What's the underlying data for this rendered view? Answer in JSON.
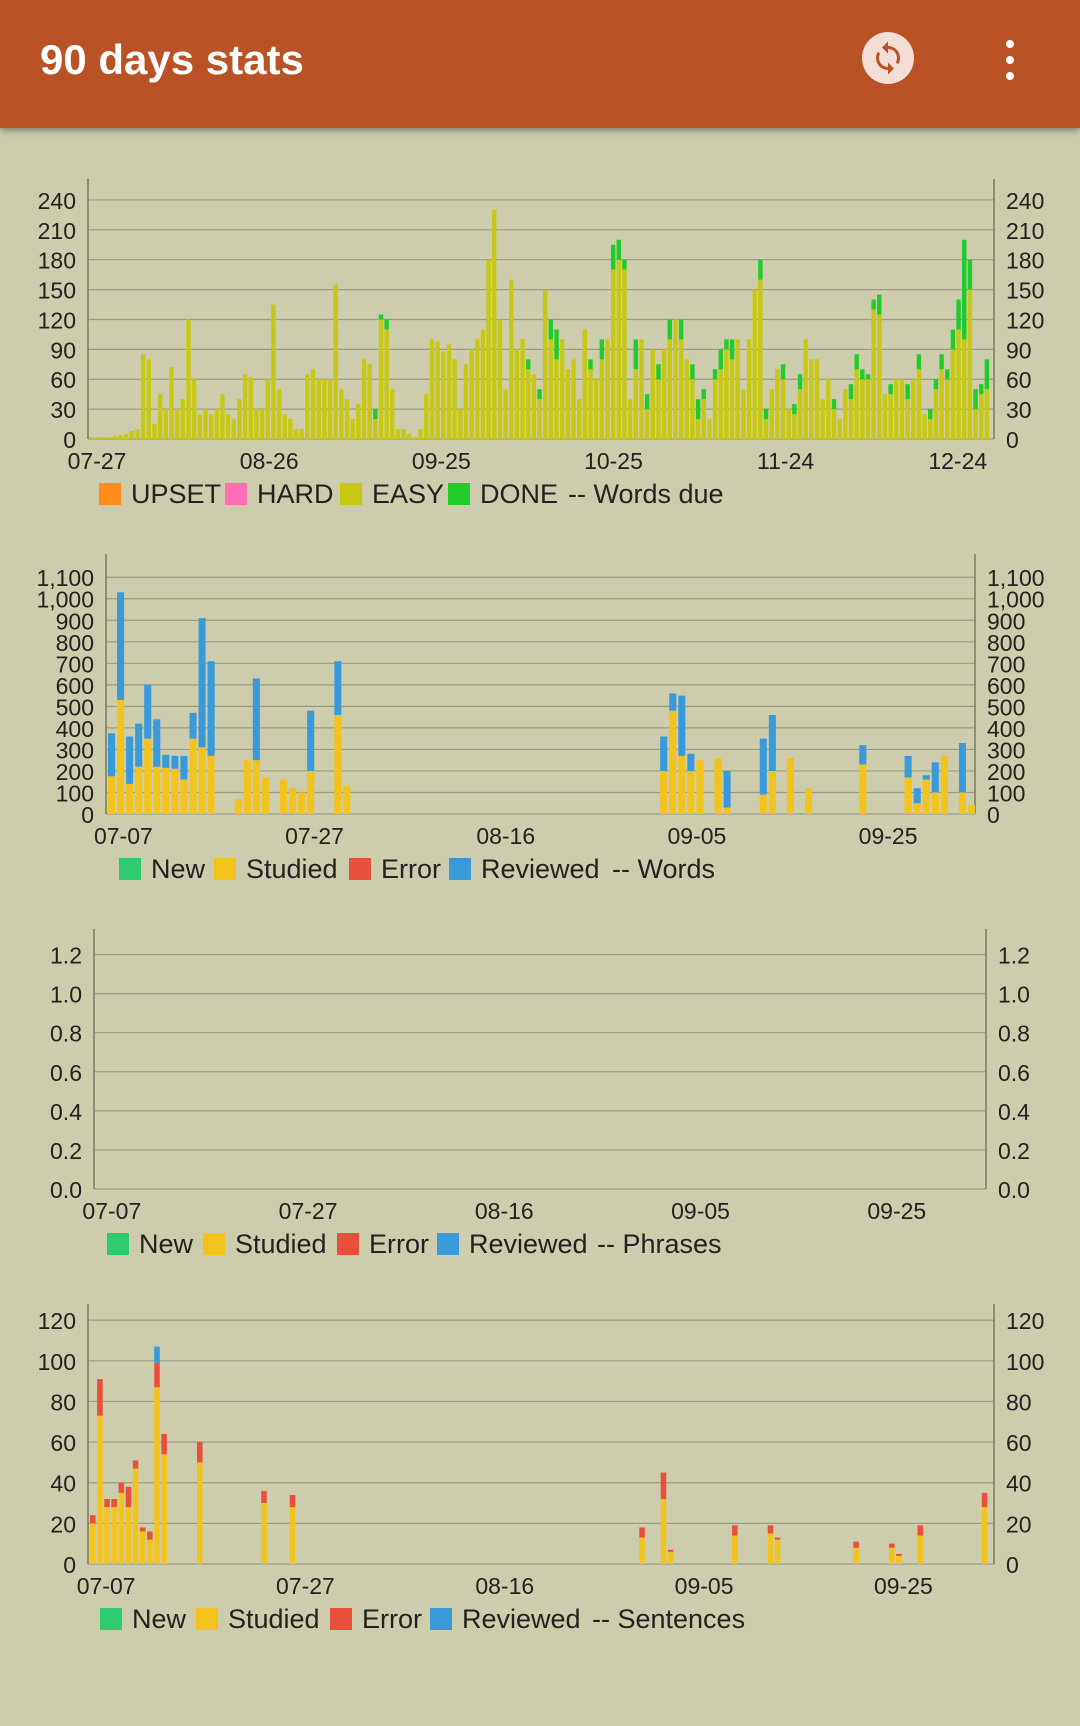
{
  "app_bar": {
    "title": "90 days stats",
    "sync_icon": "sync-icon",
    "menu_icon": "more-vert-icon"
  },
  "colors": {
    "upset": "#ff8c1a",
    "hard": "#ff6eb4",
    "easy": "#c6c814",
    "done": "#1fcc2a",
    "new": "#2ecc71",
    "studied": "#f2c31c",
    "error": "#e8503c",
    "reviewed": "#3a9ad9"
  },
  "chart_data": [
    {
      "id": "words_due",
      "type": "bar",
      "stacked": true,
      "caption": "-- Words due",
      "x_ticks": [
        "07-27",
        "08-26",
        "09-25",
        "10-25",
        "11-24",
        "12-24"
      ],
      "y_ticks": [
        "0",
        "30",
        "60",
        "90",
        "120",
        "150",
        "180",
        "210",
        "240"
      ],
      "ylim": [
        0,
        255
      ],
      "grid": true,
      "legend_position": "bottom",
      "series": [
        {
          "name": "UPSET",
          "color_key": "upset",
          "values": []
        },
        {
          "name": "HARD",
          "color_key": "hard",
          "values": []
        },
        {
          "name": "EASY",
          "color_key": "easy",
          "values": [
            2,
            2,
            2,
            2,
            3,
            4,
            5,
            8,
            10,
            85,
            80,
            15,
            45,
            30,
            72,
            30,
            40,
            120,
            60,
            25,
            30,
            25,
            30,
            45,
            25,
            20,
            40,
            65,
            62,
            30,
            30,
            60,
            135,
            50,
            25,
            20,
            10,
            10,
            65,
            70,
            60,
            60,
            60,
            155,
            50,
            40,
            20,
            35,
            80,
            75,
            20,
            120,
            110,
            50,
            10,
            10,
            5,
            2,
            10,
            45,
            100,
            98,
            88,
            95,
            80,
            30,
            75,
            90,
            100,
            110,
            180,
            230,
            120,
            50,
            160,
            90,
            100,
            70,
            65,
            40,
            150,
            100,
            80,
            100,
            70,
            80,
            40,
            110,
            70,
            60,
            80,
            100,
            170,
            180,
            170,
            40,
            70,
            100,
            30,
            90,
            60,
            90,
            100,
            120,
            100,
            80,
            60,
            20,
            40,
            20,
            60,
            70,
            90,
            80,
            100,
            50,
            100,
            150,
            160,
            20,
            50,
            70,
            60,
            30,
            25,
            50,
            100,
            80,
            80,
            40,
            60,
            30,
            20,
            50,
            40,
            70,
            60,
            60,
            130,
            125,
            45,
            45,
            60,
            60,
            40,
            60,
            70,
            25,
            20,
            50,
            70,
            60,
            90,
            110,
            100,
            150,
            30,
            45,
            50
          ]
        },
        {
          "name": "DONE",
          "color_key": "done",
          "values": [
            0,
            0,
            0,
            0,
            0,
            0,
            0,
            0,
            0,
            0,
            0,
            0,
            0,
            0,
            0,
            0,
            0,
            0,
            0,
            0,
            0,
            0,
            0,
            0,
            0,
            0,
            0,
            0,
            0,
            0,
            0,
            0,
            0,
            0,
            0,
            0,
            0,
            0,
            0,
            0,
            0,
            0,
            0,
            0,
            0,
            0,
            0,
            0,
            0,
            0,
            10,
            5,
            10,
            0,
            0,
            0,
            0,
            0,
            0,
            0,
            0,
            0,
            0,
            0,
            0,
            0,
            0,
            0,
            0,
            0,
            0,
            0,
            0,
            0,
            0,
            0,
            0,
            10,
            0,
            10,
            0,
            20,
            30,
            0,
            0,
            0,
            0,
            0,
            10,
            0,
            20,
            0,
            25,
            20,
            10,
            0,
            30,
            0,
            15,
            0,
            15,
            0,
            20,
            0,
            20,
            0,
            15,
            20,
            10,
            0,
            10,
            20,
            10,
            20,
            0,
            0,
            0,
            0,
            20,
            10,
            0,
            0,
            15,
            0,
            10,
            15,
            0,
            0,
            0,
            0,
            0,
            10,
            0,
            0,
            15,
            15,
            10,
            5,
            10,
            20,
            0,
            10,
            0,
            0,
            15,
            0,
            15,
            0,
            10,
            10,
            15,
            10,
            20,
            30,
            100,
            30,
            20,
            10,
            30
          ]
        }
      ]
    },
    {
      "id": "words",
      "type": "bar",
      "stacked": true,
      "caption": "-- Words",
      "x_ticks": [
        "07-07",
        "07-27",
        "08-16",
        "09-05",
        "09-25"
      ],
      "y_ticks": [
        "0",
        "100",
        "200",
        "300",
        "400",
        "500",
        "600",
        "700",
        "800",
        "900",
        "1,000",
        "1,100"
      ],
      "ylim": [
        0,
        1180
      ],
      "grid": true,
      "legend_position": "bottom",
      "series": [
        {
          "name": "New",
          "color_key": "new",
          "values": []
        },
        {
          "name": "Studied",
          "color_key": "studied",
          "values": [
            175,
            530,
            140,
            220,
            350,
            220,
            215,
            210,
            160,
            350,
            310,
            270,
            0,
            0,
            70,
            250,
            250,
            170,
            0,
            160,
            120,
            100,
            200,
            0,
            0,
            460,
            130,
            0,
            0,
            0,
            0,
            0,
            0,
            0,
            0,
            0,
            0,
            0,
            0,
            0,
            0,
            0,
            0,
            0,
            0,
            0,
            0,
            0,
            0,
            0,
            0,
            0,
            0,
            0,
            0,
            0,
            0,
            0,
            0,
            0,
            0,
            200,
            480,
            270,
            200,
            250,
            0,
            260,
            30,
            0,
            0,
            0,
            90,
            200,
            0,
            260,
            0,
            120,
            0,
            0,
            0,
            0,
            0,
            230,
            0,
            0,
            0,
            0,
            170,
            50,
            160,
            100,
            270,
            0,
            100,
            40
          ]
        },
        {
          "name": "Error",
          "color_key": "error",
          "values": []
        },
        {
          "name": "Reviewed",
          "color_key": "reviewed",
          "values": [
            200,
            500,
            220,
            200,
            250,
            220,
            60,
            60,
            110,
            120,
            600,
            440,
            0,
            0,
            0,
            0,
            380,
            0,
            0,
            0,
            0,
            0,
            280,
            0,
            0,
            250,
            0,
            0,
            0,
            0,
            0,
            0,
            0,
            0,
            0,
            0,
            0,
            0,
            0,
            0,
            0,
            0,
            0,
            0,
            0,
            0,
            0,
            0,
            0,
            0,
            0,
            0,
            0,
            0,
            0,
            0,
            0,
            0,
            0,
            0,
            0,
            160,
            80,
            280,
            80,
            0,
            0,
            0,
            170,
            0,
            0,
            0,
            260,
            260,
            0,
            0,
            0,
            0,
            0,
            0,
            0,
            0,
            0,
            90,
            0,
            0,
            0,
            0,
            100,
            70,
            20,
            140,
            0,
            0,
            230,
            0
          ]
        }
      ]
    },
    {
      "id": "phrases",
      "type": "bar",
      "stacked": true,
      "caption": "-- Phrases",
      "x_ticks": [
        "07-07",
        "07-27",
        "08-16",
        "09-05",
        "09-25"
      ],
      "y_ticks": [
        "0.0",
        "0.2",
        "0.4",
        "0.6",
        "0.8",
        "1.0",
        "1.2"
      ],
      "ylim": [
        0,
        1.3
      ],
      "grid": true,
      "legend_position": "bottom",
      "series": [
        {
          "name": "New",
          "color_key": "new",
          "values": []
        },
        {
          "name": "Studied",
          "color_key": "studied",
          "values": []
        },
        {
          "name": "Error",
          "color_key": "error",
          "values": []
        },
        {
          "name": "Reviewed",
          "color_key": "reviewed",
          "values": []
        }
      ]
    },
    {
      "id": "sentences",
      "type": "bar",
      "stacked": true,
      "caption": "-- Sentences",
      "x_ticks": [
        "07-07",
        "07-27",
        "08-16",
        "09-05",
        "09-25"
      ],
      "y_ticks": [
        "0",
        "20",
        "40",
        "60",
        "80",
        "100",
        "120"
      ],
      "ylim": [
        0,
        125
      ],
      "grid": true,
      "legend_position": "bottom",
      "series": [
        {
          "name": "New",
          "color_key": "new",
          "values": []
        },
        {
          "name": "Studied",
          "color_key": "studied",
          "values": [
            20,
            73,
            28,
            28,
            35,
            28,
            47,
            16,
            12,
            87,
            54,
            0,
            0,
            0,
            0,
            50,
            0,
            0,
            0,
            0,
            0,
            0,
            0,
            0,
            30,
            0,
            0,
            0,
            28,
            0,
            0,
            0,
            0,
            0,
            0,
            0,
            0,
            0,
            0,
            0,
            0,
            0,
            0,
            0,
            0,
            0,
            0,
            0,
            0,
            0,
            0,
            0,
            0,
            0,
            0,
            0,
            0,
            0,
            0,
            0,
            0,
            0,
            0,
            0,
            0,
            0,
            0,
            0,
            0,
            0,
            0,
            0,
            0,
            0,
            0,
            0,
            0,
            13,
            0,
            0,
            32,
            6,
            0,
            0,
            0,
            0,
            0,
            0,
            0,
            0,
            14,
            0,
            0,
            0,
            0,
            15,
            12,
            0,
            0,
            0,
            0,
            0,
            0,
            0,
            0,
            0,
            0,
            8,
            0,
            0,
            0,
            0,
            8,
            4,
            0,
            0,
            14,
            0,
            0,
            0,
            0,
            0,
            0,
            0,
            0,
            28,
            0
          ]
        },
        {
          "name": "Error",
          "color_key": "error",
          "values": [
            4,
            18,
            4,
            4,
            5,
            10,
            4,
            2,
            4,
            12,
            10,
            0,
            0,
            0,
            0,
            10,
            0,
            0,
            0,
            0,
            0,
            0,
            0,
            0,
            6,
            0,
            0,
            0,
            6,
            0,
            0,
            0,
            0,
            0,
            0,
            0,
            0,
            0,
            0,
            0,
            0,
            0,
            0,
            0,
            0,
            0,
            0,
            0,
            0,
            0,
            0,
            0,
            0,
            0,
            0,
            0,
            0,
            0,
            0,
            0,
            0,
            0,
            0,
            0,
            0,
            0,
            0,
            0,
            0,
            0,
            0,
            0,
            0,
            0,
            0,
            0,
            0,
            5,
            0,
            0,
            13,
            1,
            0,
            0,
            0,
            0,
            0,
            0,
            0,
            0,
            5,
            0,
            0,
            0,
            0,
            4,
            1,
            0,
            0,
            0,
            0,
            0,
            0,
            0,
            0,
            0,
            0,
            3,
            0,
            0,
            0,
            0,
            2,
            1,
            0,
            0,
            5,
            0,
            0,
            0,
            0,
            0,
            0,
            0,
            0,
            7,
            0
          ]
        },
        {
          "name": "Reviewed",
          "color_key": "reviewed",
          "values": [
            0,
            0,
            0,
            0,
            0,
            0,
            0,
            0,
            0,
            8,
            0,
            0,
            0,
            0,
            0,
            0,
            0,
            0,
            0,
            0,
            0,
            0,
            0,
            0,
            0,
            0,
            0,
            0,
            0,
            0,
            0,
            0,
            0,
            0,
            0,
            0,
            0,
            0,
            0,
            0,
            0,
            0,
            0,
            0,
            0,
            0,
            0,
            0,
            0,
            0,
            0,
            0,
            0,
            0,
            0,
            0,
            0,
            0,
            0,
            0,
            0,
            0,
            0,
            0,
            0,
            0,
            0,
            0,
            0,
            0,
            0,
            0,
            0,
            0,
            0,
            0,
            0,
            0,
            0,
            0,
            0,
            0,
            0,
            0,
            0,
            0,
            0,
            0,
            0,
            0,
            0,
            0,
            0,
            0,
            0,
            0,
            0,
            0,
            0,
            0,
            0,
            0,
            0,
            0,
            0,
            0,
            0,
            0,
            0,
            0,
            0,
            0,
            0,
            0,
            0,
            0,
            0,
            0,
            0,
            0,
            0,
            0,
            0,
            0,
            0,
            0,
            0
          ]
        }
      ]
    }
  ]
}
